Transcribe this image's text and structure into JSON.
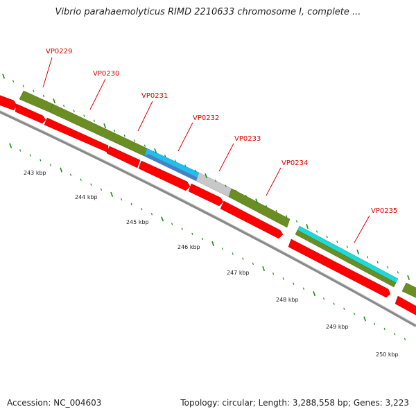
{
  "title": "Vibrio parahaemolyticus RIMD 2210633 chromosome I, complete ...",
  "footer": {
    "accession": "Accession: NC_004603",
    "summary": "Topology: circular; Length: 3,288,558 bp; Genes: 3,223"
  },
  "gene_labels": [
    "VP0229",
    "VP0230",
    "VP0231",
    "VP0232",
    "VP0233",
    "VP0234",
    "VP0235"
  ],
  "kbp_labels": [
    "243 kbp",
    "244 kbp",
    "245 kbp",
    "246 kbp",
    "247 kbp",
    "248 kbp",
    "249 kbp",
    "250 kbp"
  ],
  "colors": {
    "gene_feature": "#ff0000",
    "cds_olive": "#6b8e23",
    "cds_blue": "#1ec0f0",
    "cds_steel": "#4a7fc0",
    "cds_grey": "#c8c8c8",
    "cds_cyan": "#20d8d8",
    "backbone": "#888888",
    "tick": "#1a8a1a",
    "label_text": "#dd0000"
  }
}
